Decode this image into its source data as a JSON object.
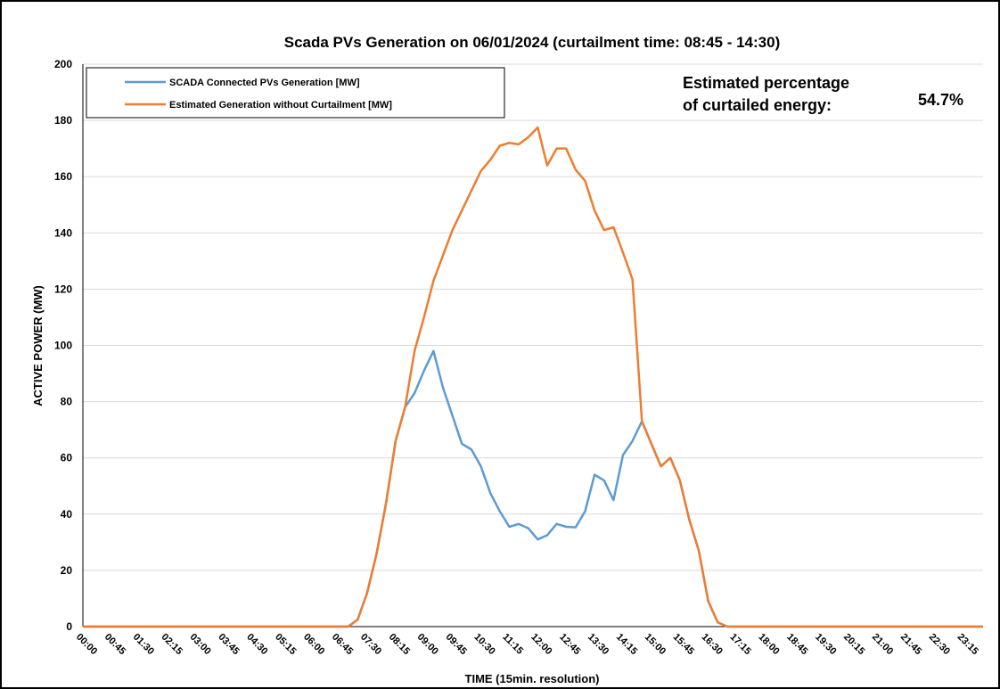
{
  "chart_data": {
    "type": "line",
    "title": "Scada PVs Generation on 06/01/2024 (curtailment time: 08:45 - 14:30)",
    "x_label": "TIME (15min. resolution)",
    "y_label": "ACTIVE POWER (MW)",
    "annotations": [
      "Estimated percentage",
      "of curtailed energy:",
      "54.7%"
    ],
    "categories": [
      "00:00",
      null,
      null,
      "00:45",
      null,
      null,
      "01:30",
      null,
      null,
      "02:15",
      null,
      null,
      "03:00",
      null,
      null,
      "03:45",
      null,
      null,
      "04:30",
      null,
      null,
      "05:15",
      null,
      null,
      "06:00",
      null,
      null,
      "06:45",
      null,
      null,
      "07:30",
      null,
      null,
      "08:15",
      null,
      null,
      "09:00",
      null,
      null,
      "09:45",
      null,
      null,
      "10:30",
      null,
      null,
      "11:15",
      null,
      null,
      "12:00",
      null,
      null,
      "12:45",
      null,
      null,
      "13:30",
      null,
      null,
      "14:15",
      null,
      null,
      "15:00",
      null,
      null,
      "15:45",
      null,
      null,
      "16:30",
      null,
      null,
      "17:15",
      null,
      null,
      "18:00",
      null,
      null,
      "18:45",
      null,
      null,
      "19:30",
      null,
      null,
      "20:15",
      null,
      null,
      "21:00",
      null,
      null,
      "21:45",
      null,
      null,
      "22:30",
      null,
      null,
      "23:15",
      null,
      null
    ],
    "series": [
      {
        "name": "SCADA Connected PVs Generation [MW]",
        "color": "#5b9bd5",
        "values": [
          0,
          0,
          0,
          0,
          0,
          0,
          0,
          0,
          0,
          0,
          0,
          0,
          0,
          0,
          0,
          0,
          0,
          0,
          0,
          0,
          0,
          0,
          0,
          0,
          0,
          0,
          0,
          0,
          0,
          2.5,
          12,
          26,
          44,
          66,
          78,
          83,
          91,
          98,
          85,
          75,
          65,
          63,
          57,
          47.5,
          41,
          35.5,
          36.5,
          35,
          31,
          32.5,
          36.5,
          35.5,
          35.3,
          41,
          54,
          52,
          45,
          61,
          66,
          73,
          65,
          57,
          60,
          52,
          38,
          27,
          9,
          1.5,
          0,
          0,
          0,
          0,
          0,
          0,
          0,
          0,
          0,
          0,
          0,
          0,
          0,
          0,
          0,
          0,
          0,
          0,
          0,
          0,
          0,
          0,
          0,
          0,
          0,
          0,
          0,
          0
        ]
      },
      {
        "name": "Estimated Generation without Curtailment [MW]",
        "color": "#ed7d31",
        "values": [
          0,
          0,
          0,
          0,
          0,
          0,
          0,
          0,
          0,
          0,
          0,
          0,
          0,
          0,
          0,
          0,
          0,
          0,
          0,
          0,
          0,
          0,
          0,
          0,
          0,
          0,
          0,
          0,
          0,
          2.5,
          12,
          26,
          44,
          66,
          78,
          98,
          110,
          123,
          132,
          141,
          148,
          155,
          162,
          166,
          171,
          172,
          171.5,
          174,
          177.5,
          164,
          170,
          170,
          162.5,
          158.5,
          148,
          141,
          142,
          133,
          123.5,
          73,
          65,
          57,
          60,
          52,
          38,
          27,
          9,
          1.5,
          0,
          0,
          0,
          0,
          0,
          0,
          0,
          0,
          0,
          0,
          0,
          0,
          0,
          0,
          0,
          0,
          0,
          0,
          0,
          0,
          0,
          0,
          0,
          0,
          0,
          0,
          0,
          0
        ]
      }
    ],
    "ylim": [
      0,
      200
    ],
    "yticks": [
      0,
      20,
      40,
      60,
      80,
      100,
      120,
      140,
      160,
      180,
      200
    ],
    "grid": true
  }
}
